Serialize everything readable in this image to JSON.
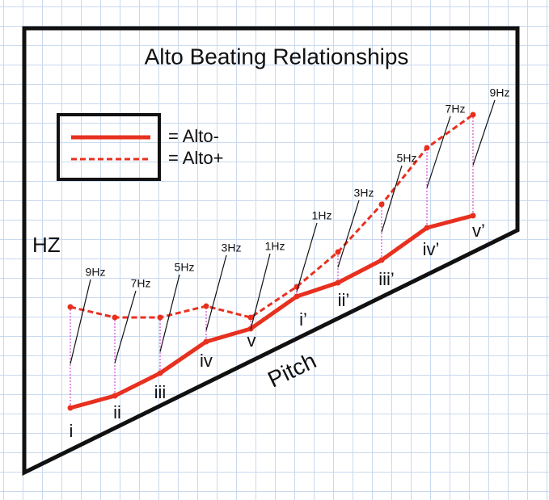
{
  "title": "Alto Beating Relationships",
  "legend": [
    {
      "label": "= Alto-"
    },
    {
      "label": "= Alto+"
    }
  ],
  "y_axis_label": "HZ",
  "x_axis_label": "Pitch",
  "points": [
    {
      "label": "i",
      "beat": "9Hz"
    },
    {
      "label": "ii",
      "beat": "7Hz"
    },
    {
      "label": "iii",
      "beat": "5Hz"
    },
    {
      "label": "iv",
      "beat": "3Hz"
    },
    {
      "label": "v",
      "beat": "1Hz"
    },
    {
      "label": "i’",
      "beat": "1Hz"
    },
    {
      "label": "ii’",
      "beat": "3Hz"
    },
    {
      "label": "iii’",
      "beat": "5Hz"
    },
    {
      "label": "iv’",
      "beat": "7Hz"
    },
    {
      "label": "v’",
      "beat": "9Hz"
    }
  ]
}
